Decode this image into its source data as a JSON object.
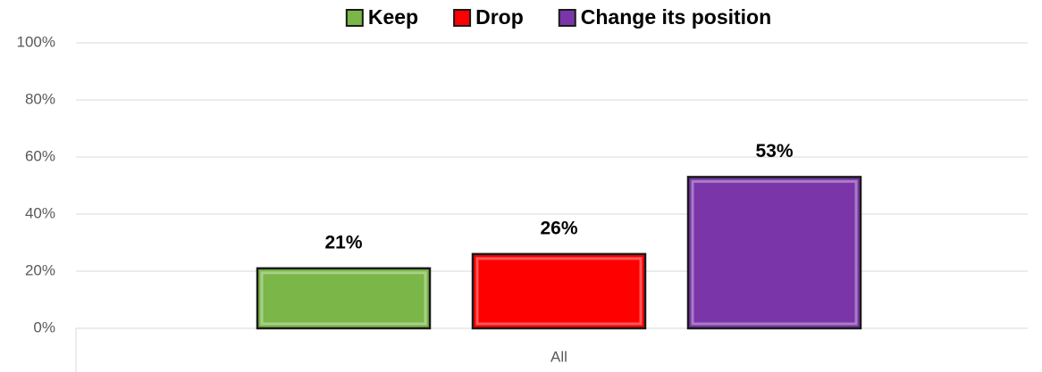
{
  "chart_data": {
    "type": "bar",
    "categories": [
      "All"
    ],
    "series": [
      {
        "name": "Keep",
        "color": "#7ab648",
        "values": [
          21
        ],
        "value_labels": [
          "21%"
        ]
      },
      {
        "name": "Drop",
        "color": "#ff0000",
        "values": [
          26
        ],
        "value_labels": [
          "26%"
        ]
      },
      {
        "name": "Change its position",
        "color": "#7a36a8",
        "values": [
          53
        ],
        "value_labels": [
          "53%"
        ]
      }
    ],
    "ylim": [
      0,
      100
    ],
    "yticks": [
      {
        "value": 0,
        "label": "0%"
      },
      {
        "value": 20,
        "label": "20%"
      },
      {
        "value": 40,
        "label": "40%"
      },
      {
        "value": 60,
        "label": "60%"
      },
      {
        "value": 80,
        "label": "80%"
      },
      {
        "value": 100,
        "label": "100%"
      }
    ],
    "grid": true,
    "legend": "top"
  }
}
